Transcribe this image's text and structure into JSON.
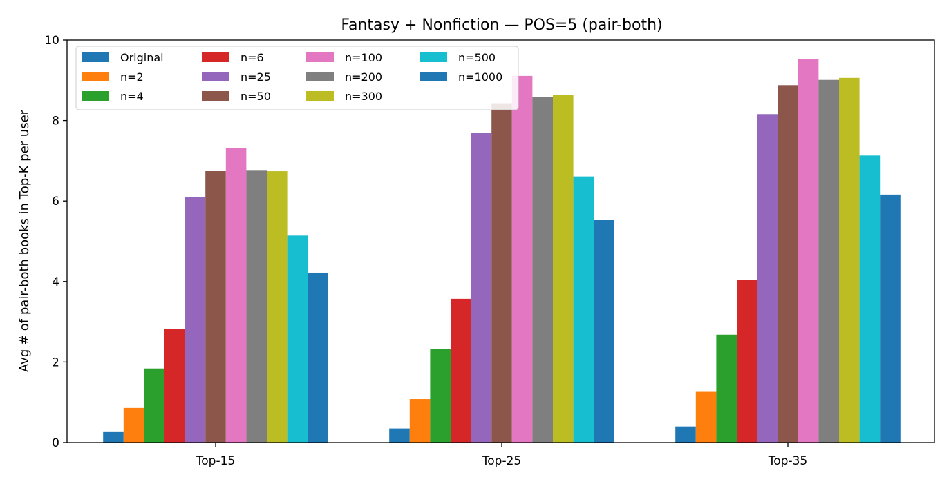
{
  "chart_data": {
    "type": "bar",
    "title": "Fantasy + Nonfiction — POS=5 (pair-both)",
    "xlabel": "",
    "ylabel": "Avg # of pair-both books in Top-K per user",
    "ylim": [
      0,
      10
    ],
    "yticks": [
      "0",
      "2",
      "4",
      "6",
      "8",
      "10"
    ],
    "categories": [
      "Top-15",
      "Top-25",
      "Top-35"
    ],
    "grid": false,
    "legend": {
      "placement": "top-left",
      "columns": 4
    },
    "series": [
      {
        "name": "Original",
        "color": "#1f77b4",
        "values": [
          0.26,
          0.35,
          0.4
        ]
      },
      {
        "name": "n=2",
        "color": "#ff7f0e",
        "values": [
          0.86,
          1.08,
          1.26
        ]
      },
      {
        "name": "n=4",
        "color": "#2ca02c",
        "values": [
          1.84,
          2.32,
          2.68
        ]
      },
      {
        "name": "n=6",
        "color": "#d62728",
        "values": [
          2.83,
          3.57,
          4.04
        ]
      },
      {
        "name": "n=25",
        "color": "#9467bd",
        "values": [
          6.1,
          7.7,
          8.16
        ]
      },
      {
        "name": "n=50",
        "color": "#8c564b",
        "values": [
          6.75,
          8.43,
          8.88
        ]
      },
      {
        "name": "n=100",
        "color": "#e377c2",
        "values": [
          7.32,
          9.11,
          9.53
        ]
      },
      {
        "name": "n=200",
        "color": "#7f7f7f",
        "values": [
          6.77,
          8.58,
          9.01
        ]
      },
      {
        "name": "n=300",
        "color": "#bcbd22",
        "values": [
          6.74,
          8.64,
          9.06
        ]
      },
      {
        "name": "n=500",
        "color": "#17becf",
        "values": [
          5.14,
          6.61,
          7.13
        ]
      },
      {
        "name": "n=1000",
        "color": "#1f77b4",
        "values": [
          4.22,
          5.54,
          6.16
        ]
      }
    ]
  }
}
